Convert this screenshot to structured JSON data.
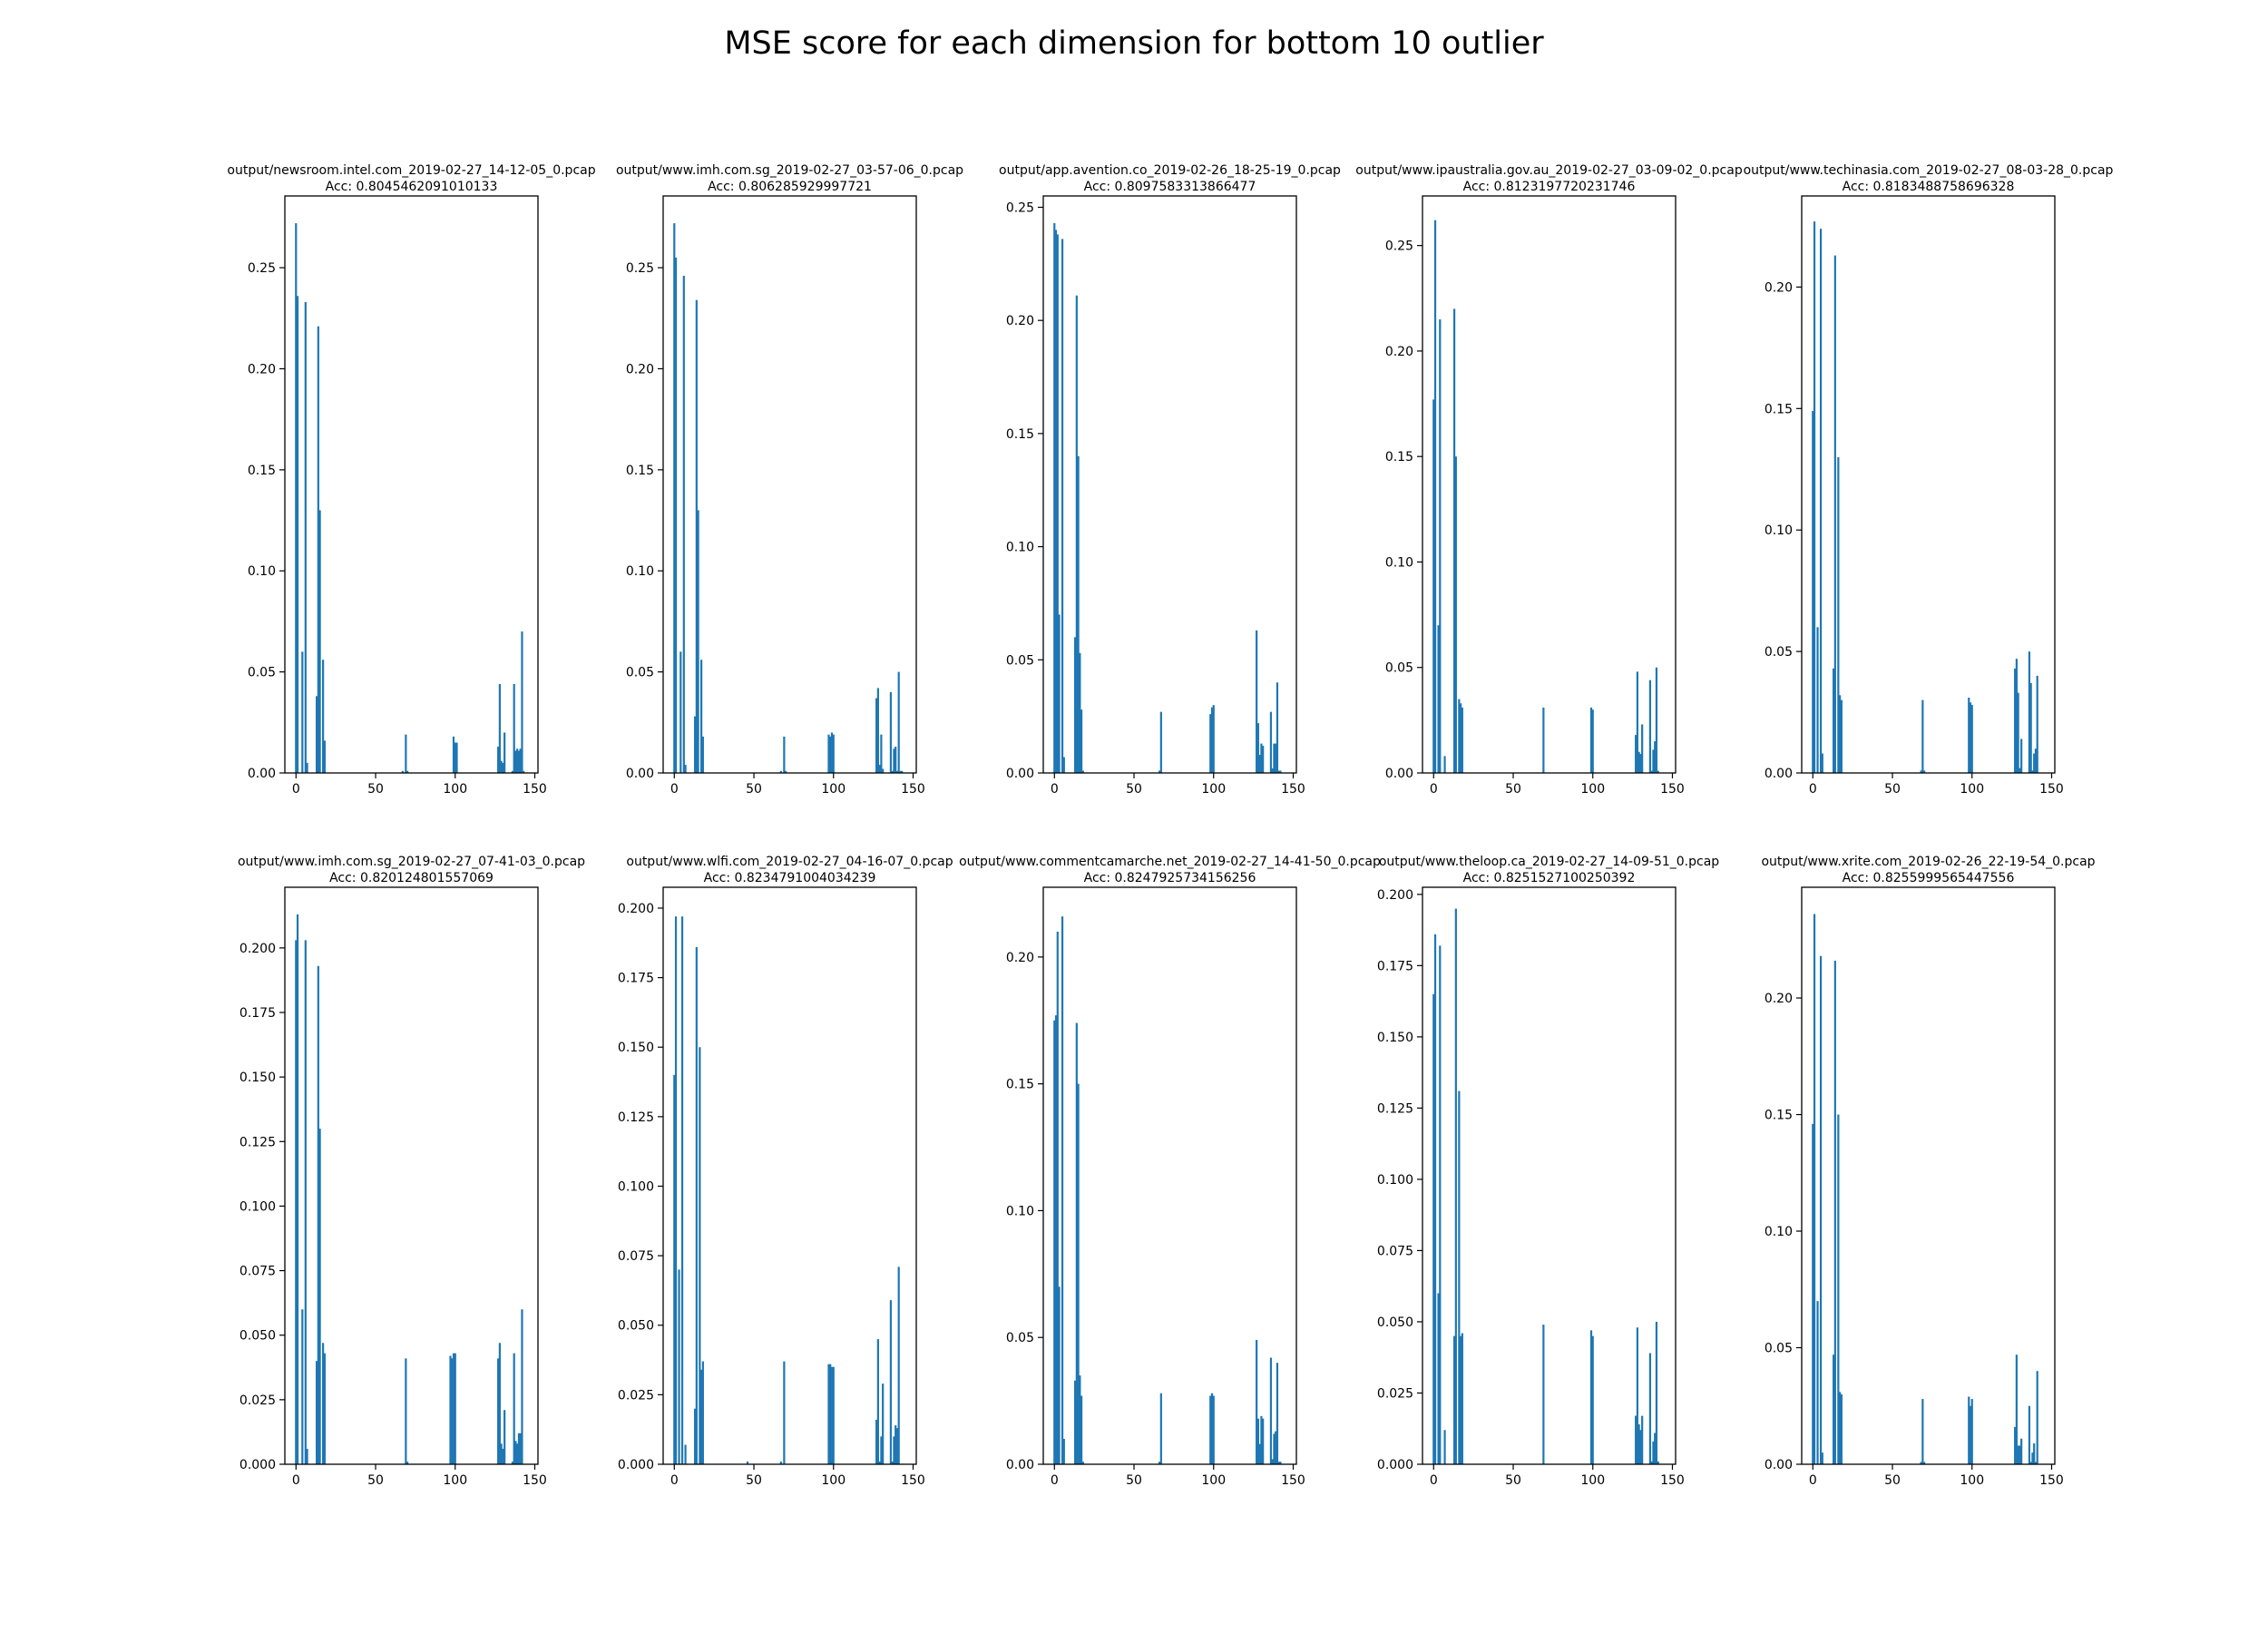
{
  "figure": {
    "suptitle": "MSE score for each dimension for bottom 10 outlier",
    "bar_color": "#1f77b4"
  },
  "chart_data": [
    {
      "type": "bar",
      "title": "output/newsroom.intel.com_2019-02-27_14-12-05_0.pcap",
      "subtitle": "Acc: 0.8045462091010133",
      "xlim": [
        -7,
        152
      ],
      "xticks": [
        0,
        50,
        100,
        150
      ],
      "ylim": [
        0,
        0.2855
      ],
      "yticks": [
        0.0,
        0.05,
        0.1,
        0.15,
        0.2,
        0.25
      ],
      "yticklabels": [
        "0.00",
        "0.05",
        "0.10",
        "0.15",
        "0.20",
        "0.25"
      ],
      "x": [
        0,
        1,
        4,
        6,
        7,
        13,
        14,
        15,
        17,
        18,
        67,
        69,
        70,
        99,
        100,
        101,
        127,
        128,
        129,
        130,
        131,
        136,
        137,
        138,
        139,
        140,
        141,
        142,
        143
      ],
      "values": [
        0.272,
        0.236,
        0.06,
        0.233,
        0.005,
        0.038,
        0.221,
        0.13,
        0.056,
        0.016,
        0.001,
        0.019,
        0.001,
        0.018,
        0.015,
        0.015,
        0.013,
        0.044,
        0.006,
        0.005,
        0.02,
        0.001,
        0.044,
        0.011,
        0.012,
        0.011,
        0.012,
        0.07,
        0.001
      ]
    },
    {
      "type": "bar",
      "title": "output/www.imh.com.sg_2019-02-27_03-57-06_0.pcap",
      "subtitle": "Acc: 0.806285929997721",
      "xlim": [
        -7,
        152
      ],
      "xticks": [
        0,
        50,
        100,
        150
      ],
      "ylim": [
        0,
        0.2855
      ],
      "yticks": [
        0.0,
        0.05,
        0.1,
        0.15,
        0.2,
        0.25
      ],
      "yticklabels": [
        "0.00",
        "0.05",
        "0.10",
        "0.15",
        "0.20",
        "0.25"
      ],
      "x": [
        0,
        1,
        4,
        6,
        7,
        13,
        14,
        15,
        17,
        18,
        67,
        69,
        70,
        97,
        98,
        99,
        100,
        127,
        128,
        129,
        130,
        131,
        136,
        137,
        138,
        139,
        140,
        141,
        142,
        143
      ],
      "values": [
        0.272,
        0.255,
        0.06,
        0.246,
        0.004,
        0.028,
        0.234,
        0.13,
        0.056,
        0.018,
        0.001,
        0.018,
        0.001,
        0.019,
        0.018,
        0.02,
        0.019,
        0.037,
        0.042,
        0.004,
        0.019,
        0.002,
        0.04,
        0.001,
        0.012,
        0.013,
        0.001,
        0.05,
        0.001,
        0.001
      ]
    },
    {
      "type": "bar",
      "title": "output/app.avention.co_2019-02-26_18-25-19_0.pcap",
      "subtitle": "Acc: 0.8097583313866477",
      "xlim": [
        -7,
        152
      ],
      "xticks": [
        0,
        50,
        100,
        150
      ],
      "ylim": [
        0,
        0.255
      ],
      "yticks": [
        0.0,
        0.05,
        0.1,
        0.15,
        0.2,
        0.25
      ],
      "yticklabels": [
        "0.00",
        "0.05",
        "0.10",
        "0.15",
        "0.20",
        "0.25"
      ],
      "x": [
        0,
        1,
        2,
        3,
        5,
        6,
        13,
        14,
        15,
        16,
        17,
        18,
        66,
        67,
        98,
        99,
        100,
        127,
        128,
        129,
        130,
        131,
        136,
        137,
        138,
        139,
        140,
        141,
        142
      ],
      "values": [
        0.243,
        0.24,
        0.238,
        0.07,
        0.236,
        0.007,
        0.06,
        0.211,
        0.14,
        0.053,
        0.028,
        0.001,
        0.001,
        0.027,
        0.026,
        0.029,
        0.03,
        0.063,
        0.022,
        0.008,
        0.013,
        0.012,
        0.027,
        0.002,
        0.013,
        0.013,
        0.04,
        0.001,
        0.001
      ]
    },
    {
      "type": "bar",
      "title": "output/www.ipaustralia.gov.au_2019-02-27_03-09-02_0.pcap",
      "subtitle": "Acc: 0.8123197720231746",
      "xlim": [
        -7,
        152
      ],
      "xticks": [
        0,
        50,
        100,
        150
      ],
      "ylim": [
        0,
        0.2735
      ],
      "yticks": [
        0.0,
        0.05,
        0.1,
        0.15,
        0.2,
        0.25
      ],
      "yticklabels": [
        "0.00",
        "0.05",
        "0.10",
        "0.15",
        "0.20",
        "0.25"
      ],
      "x": [
        0,
        1,
        3,
        4,
        7,
        13,
        14,
        16,
        17,
        18,
        69,
        99,
        100,
        127,
        128,
        129,
        130,
        131,
        136,
        137,
        138,
        139,
        140,
        141
      ],
      "values": [
        0.177,
        0.262,
        0.07,
        0.215,
        0.008,
        0.22,
        0.15,
        0.035,
        0.033,
        0.031,
        0.031,
        0.031,
        0.03,
        0.018,
        0.048,
        0.01,
        0.009,
        0.023,
        0.044,
        0.001,
        0.011,
        0.015,
        0.05,
        0.001
      ]
    },
    {
      "type": "bar",
      "title": "output/www.techinasia.com_2019-02-27_08-03-28_0.pcap",
      "subtitle": "Acc: 0.8183488758696328",
      "xlim": [
        -7,
        152
      ],
      "xticks": [
        0,
        50,
        100,
        150
      ],
      "ylim": [
        0,
        0.2375
      ],
      "yticks": [
        0.0,
        0.05,
        0.1,
        0.15,
        0.2
      ],
      "yticklabels": [
        "0.00",
        "0.05",
        "0.10",
        "0.15",
        "0.20"
      ],
      "x": [
        0,
        1,
        3,
        5,
        6,
        13,
        14,
        16,
        17,
        18,
        68,
        69,
        70,
        98,
        99,
        100,
        127,
        128,
        129,
        130,
        131,
        136,
        137,
        138,
        139,
        140,
        141
      ],
      "values": [
        0.149,
        0.227,
        0.06,
        0.224,
        0.008,
        0.043,
        0.213,
        0.13,
        0.032,
        0.03,
        0.001,
        0.03,
        0.001,
        0.031,
        0.029,
        0.028,
        0.043,
        0.047,
        0.033,
        0.002,
        0.014,
        0.05,
        0.037,
        0.001,
        0.008,
        0.01,
        0.04
      ]
    },
    {
      "type": "bar",
      "title": "output/www.imh.com.sg_2019-02-27_07-41-03_0.pcap",
      "subtitle": "Acc: 0.820124801557069",
      "xlim": [
        -7,
        152
      ],
      "xticks": [
        0,
        50,
        100,
        150
      ],
      "ylim": [
        0,
        0.2235
      ],
      "yticks": [
        0.0,
        0.025,
        0.05,
        0.075,
        0.1,
        0.125,
        0.15,
        0.175,
        0.2
      ],
      "yticklabels": [
        "0.000",
        "0.025",
        "0.050",
        "0.075",
        "0.100",
        "0.125",
        "0.150",
        "0.175",
        "0.200"
      ],
      "x": [
        0,
        1,
        4,
        6,
        7,
        13,
        14,
        15,
        17,
        18,
        69,
        70,
        97,
        98,
        99,
        100,
        127,
        128,
        129,
        130,
        131,
        136,
        137,
        138,
        139,
        140,
        141,
        142
      ],
      "values": [
        0.203,
        0.213,
        0.06,
        0.203,
        0.006,
        0.04,
        0.193,
        0.13,
        0.047,
        0.043,
        0.041,
        0.001,
        0.042,
        0.041,
        0.043,
        0.043,
        0.041,
        0.047,
        0.008,
        0.006,
        0.021,
        0.001,
        0.043,
        0.009,
        0.008,
        0.012,
        0.012,
        0.06
      ]
    },
    {
      "type": "bar",
      "title": "output/www.wlfi.com_2019-02-27_04-16-07_0.pcap",
      "subtitle": "Acc: 0.8234791004034239",
      "xlim": [
        -7,
        152
      ],
      "xticks": [
        0,
        50,
        100,
        150
      ],
      "ylim": [
        0,
        0.2075
      ],
      "yticks": [
        0.0,
        0.025,
        0.05,
        0.075,
        0.1,
        0.125,
        0.15,
        0.175,
        0.2
      ],
      "yticklabels": [
        "0.000",
        "0.025",
        "0.050",
        "0.075",
        "0.100",
        "0.125",
        "0.150",
        "0.175",
        "0.200"
      ],
      "x": [
        0,
        1,
        3,
        5,
        7,
        13,
        14,
        16,
        17,
        18,
        46,
        67,
        69,
        97,
        98,
        99,
        100,
        127,
        128,
        129,
        130,
        131,
        136,
        137,
        138,
        139,
        140,
        141
      ],
      "values": [
        0.14,
        0.197,
        0.07,
        0.197,
        0.007,
        0.02,
        0.186,
        0.15,
        0.034,
        0.037,
        0.001,
        0.001,
        0.037,
        0.036,
        0.036,
        0.035,
        0.035,
        0.016,
        0.045,
        0.001,
        0.01,
        0.029,
        0.059,
        0.001,
        0.01,
        0.014,
        0.013,
        0.071
      ]
    },
    {
      "type": "bar",
      "title": "output/www.commentcamarche.net_2019-02-27_14-41-50_0.pcap",
      "subtitle": "Acc: 0.8247925734156256",
      "xlim": [
        -7,
        152
      ],
      "xticks": [
        0,
        50,
        100,
        150
      ],
      "ylim": [
        0,
        0.2275
      ],
      "yticks": [
        0.0,
        0.05,
        0.1,
        0.15,
        0.2
      ],
      "yticklabels": [
        "0.00",
        "0.05",
        "0.10",
        "0.15",
        "0.20"
      ],
      "x": [
        0,
        1,
        2,
        3,
        5,
        6,
        13,
        14,
        15,
        16,
        17,
        18,
        66,
        67,
        98,
        99,
        100,
        127,
        128,
        129,
        130,
        131,
        136,
        137,
        138,
        139,
        140,
        141,
        142
      ],
      "values": [
        0.175,
        0.177,
        0.21,
        0.07,
        0.216,
        0.01,
        0.033,
        0.174,
        0.15,
        0.035,
        0.027,
        0.001,
        0.001,
        0.028,
        0.027,
        0.028,
        0.027,
        0.049,
        0.018,
        0.008,
        0.019,
        0.018,
        0.042,
        0.002,
        0.012,
        0.013,
        0.04,
        0.001,
        0.001
      ]
    },
    {
      "type": "bar",
      "title": "output/www.theloop.ca_2019-02-27_14-09-51_0.pcap",
      "subtitle": "Acc: 0.8251527100250392",
      "xlim": [
        -7,
        152
      ],
      "xticks": [
        0,
        50,
        100,
        150
      ],
      "ylim": [
        0,
        0.2025
      ],
      "yticks": [
        0.0,
        0.025,
        0.05,
        0.075,
        0.1,
        0.125,
        0.15,
        0.175,
        0.2
      ],
      "yticklabels": [
        "0.000",
        "0.025",
        "0.050",
        "0.075",
        "0.100",
        "0.125",
        "0.150",
        "0.175",
        "0.200"
      ],
      "x": [
        0,
        1,
        3,
        4,
        7,
        13,
        14,
        16,
        17,
        18,
        69,
        99,
        100,
        127,
        128,
        129,
        130,
        131,
        136,
        137,
        138,
        139,
        140,
        141
      ],
      "values": [
        0.165,
        0.186,
        0.06,
        0.182,
        0.012,
        0.045,
        0.195,
        0.131,
        0.045,
        0.046,
        0.049,
        0.047,
        0.045,
        0.017,
        0.048,
        0.014,
        0.012,
        0.017,
        0.039,
        0.001,
        0.008,
        0.011,
        0.05,
        0.001
      ]
    },
    {
      "type": "bar",
      "title": "output/www.xrite.com_2019-02-26_22-19-54_0.pcap",
      "subtitle": "Acc: 0.8255999565447556",
      "xlim": [
        -7,
        152
      ],
      "xticks": [
        0,
        50,
        100,
        150
      ],
      "ylim": [
        0,
        0.2475
      ],
      "yticks": [
        0.0,
        0.05,
        0.1,
        0.15,
        0.2
      ],
      "yticklabels": [
        "0.00",
        "0.05",
        "0.10",
        "0.15",
        "0.20"
      ],
      "x": [
        0,
        1,
        3,
        5,
        6,
        13,
        14,
        16,
        17,
        18,
        68,
        69,
        70,
        98,
        99,
        100,
        127,
        128,
        129,
        130,
        131,
        136,
        137,
        138,
        139,
        140,
        141
      ],
      "values": [
        0.146,
        0.236,
        0.07,
        0.218,
        0.005,
        0.047,
        0.216,
        0.15,
        0.031,
        0.03,
        0.001,
        0.028,
        0.001,
        0.029,
        0.025,
        0.028,
        0.016,
        0.047,
        0.008,
        0.008,
        0.011,
        0.025,
        0.001,
        0.005,
        0.009,
        0.001,
        0.04
      ]
    }
  ]
}
